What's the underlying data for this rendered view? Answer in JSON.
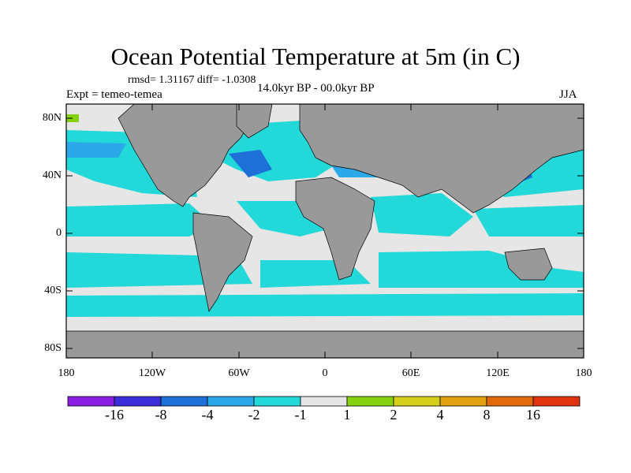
{
  "title": "Ocean Potential Temperature at 5m (in C)",
  "stats": "rmsd= 1.31167 diff= -1.0308",
  "experiment": "Expt = temeo-temea",
  "period": "14.0kyr BP - 00.0kyr BP",
  "season": "JJA",
  "y_ticks": [
    "80N",
    "40N",
    "0",
    "40S",
    "80S"
  ],
  "x_ticks": [
    "180",
    "120W",
    "60W",
    "0",
    "60E",
    "120E",
    "180"
  ],
  "colorbar": {
    "colors": [
      "#8a1ee0",
      "#3b2ed8",
      "#1f6fd8",
      "#2aa8e8",
      "#22d8d8",
      "#e6e6e6",
      "#86d10e",
      "#d4cf1a",
      "#e0a211",
      "#e06a0c",
      "#e03310"
    ],
    "labels": [
      "-16",
      "-8",
      "-4",
      "-2",
      "-1",
      "1",
      "2",
      "4",
      "8",
      "16"
    ]
  }
}
